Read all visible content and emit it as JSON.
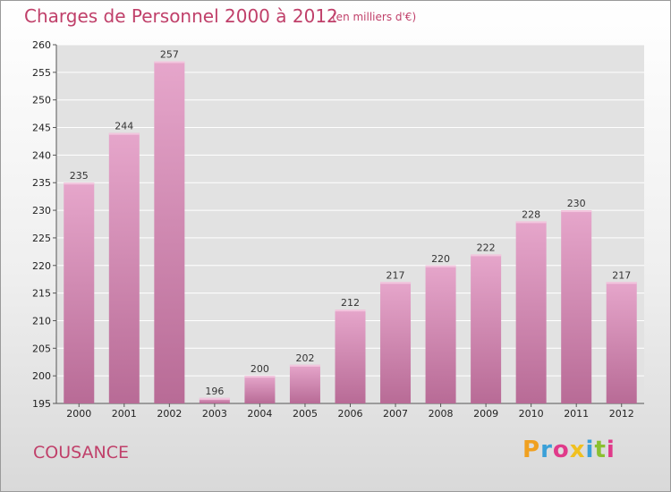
{
  "header": {
    "title": "Charges de Personnel 2000 à 2012",
    "subtitle": "(en milliers d'€)"
  },
  "commune": "COUSANCE",
  "logo": {
    "letters": [
      "P",
      "r",
      "o",
      "x",
      "i",
      "t",
      "i"
    ],
    "colors": [
      "#f0a020",
      "#3aa0d8",
      "#e03a8a",
      "#f0c020",
      "#3aa0d8",
      "#8ac030",
      "#e03a8a"
    ]
  },
  "chart_data": {
    "type": "bar",
    "categories": [
      "2000",
      "2001",
      "2002",
      "2003",
      "2004",
      "2005",
      "2006",
      "2007",
      "2008",
      "2009",
      "2010",
      "2011",
      "2012"
    ],
    "values": [
      235,
      244,
      257,
      196,
      200,
      202,
      212,
      217,
      220,
      222,
      228,
      230,
      217
    ],
    "data_labels": [
      "235",
      "244",
      "257",
      "196",
      "200",
      "202",
      "212",
      "217",
      "220",
      "222",
      "228",
      "230",
      "217"
    ],
    "title": "Charges de Personnel 2000 à 2012",
    "ylim": [
      195,
      260
    ],
    "yticks": [
      195,
      200,
      205,
      210,
      215,
      220,
      225,
      230,
      235,
      240,
      245,
      250,
      255,
      260
    ],
    "grid": true,
    "bar_color": "#d889b5"
  }
}
